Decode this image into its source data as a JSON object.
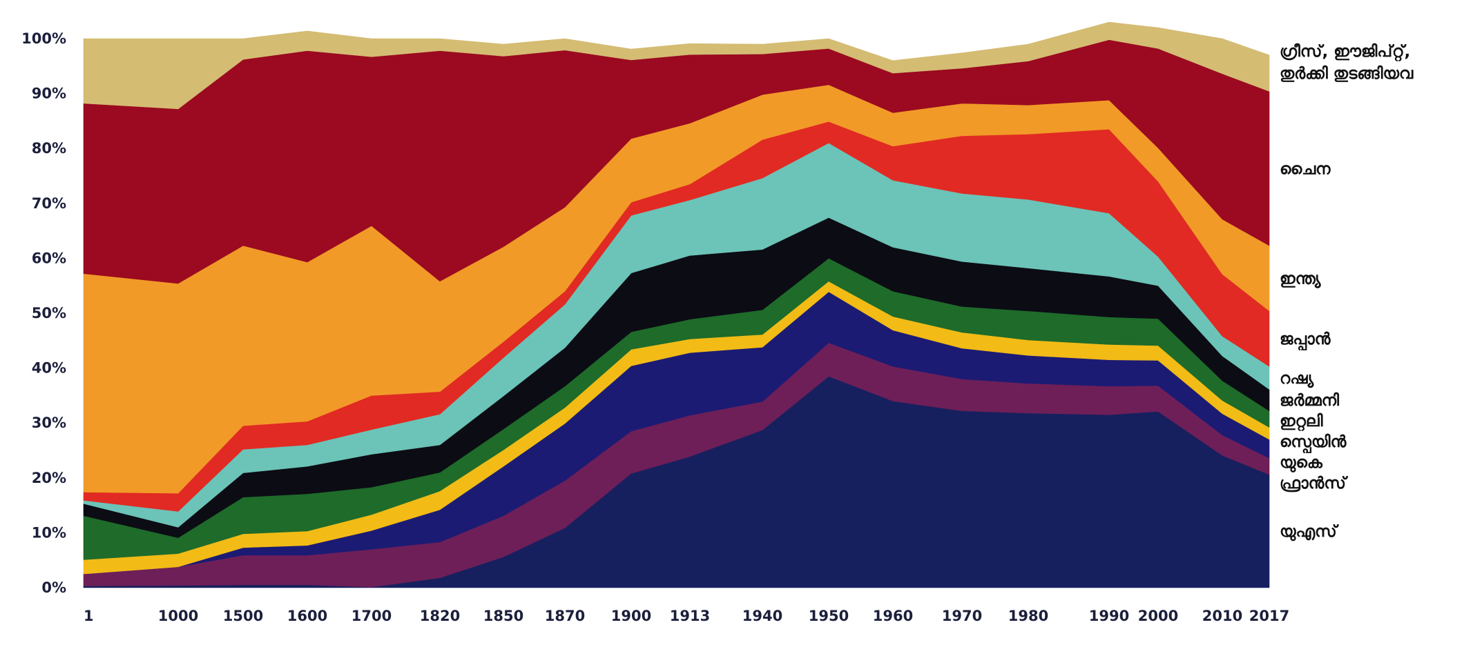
{
  "chart_data": {
    "type": "area",
    "stacked": true,
    "normalized_percent": true,
    "title": "",
    "xlabel": "",
    "ylabel": "",
    "ylim": [
      0,
      100
    ],
    "grid": false,
    "legend_placement": "right",
    "x": [
      "1",
      "1000",
      "1500",
      "1600",
      "1700",
      "1820",
      "1850",
      "1870",
      "1900",
      "1913",
      "1940",
      "1950",
      "1960",
      "1970",
      "1980",
      "1990",
      "2000",
      "2010",
      "2017"
    ],
    "y_ticks": [
      "0%",
      "10%",
      "20%",
      "30%",
      "40%",
      "50%",
      "60%",
      "70%",
      "80%",
      "90%",
      "100%"
    ],
    "series": [
      {
        "name": "യുഎസ്",
        "color": "#17205e",
        "values": [
          0.3,
          0.4,
          0.5,
          0.5,
          0.1,
          1.8,
          5.6,
          10.9,
          20.8,
          23.9,
          28.7,
          38.5,
          34.0,
          32.2,
          31.8,
          31.5,
          32.1,
          24.1,
          20.6
        ]
      },
      {
        "name": "ഫ്രാൻസ്",
        "color": "#6e1f58",
        "values": [
          2.2,
          3.4,
          5.4,
          5.4,
          6.9,
          6.5,
          7.5,
          8.6,
          7.7,
          7.5,
          5.2,
          6.1,
          6.3,
          5.8,
          5.4,
          5.2,
          4.7,
          3.7,
          3.0
        ]
      },
      {
        "name": "യുകെ",
        "color": "#1c1b74",
        "values": [
          0.0,
          0.0,
          1.4,
          1.8,
          3.4,
          5.9,
          9.0,
          10.4,
          11.9,
          11.4,
          9.9,
          9.3,
          6.6,
          5.6,
          5.1,
          4.8,
          4.6,
          3.9,
          3.4
        ]
      },
      {
        "name": "സ്പെയിൻ",
        "color": "#f2bb16",
        "values": [
          2.6,
          2.4,
          2.5,
          2.6,
          2.9,
          3.4,
          3.0,
          2.9,
          3.0,
          2.5,
          2.3,
          1.9,
          2.5,
          2.9,
          2.8,
          2.8,
          2.7,
          2.4,
          2.2
        ]
      },
      {
        "name": "ഇറ്റലി",
        "color": "#1e6b2a",
        "values": [
          8.0,
          2.9,
          6.7,
          6.8,
          5.0,
          3.4,
          3.8,
          3.9,
          3.2,
          3.6,
          4.5,
          4.2,
          4.6,
          4.7,
          5.3,
          5.0,
          4.9,
          3.6,
          3.0
        ]
      },
      {
        "name": "ജർമ്മനി",
        "color": "#0c0c14",
        "values": [
          2.2,
          1.9,
          4.4,
          5.0,
          6.0,
          5.0,
          6.0,
          7.0,
          10.7,
          11.6,
          11.0,
          7.4,
          8.0,
          8.2,
          7.8,
          7.4,
          6.0,
          4.5,
          3.9
        ]
      },
      {
        "name": "റഷ്യ",
        "color": "#6cc3b8",
        "values": [
          0.6,
          2.9,
          4.3,
          3.9,
          4.5,
          5.6,
          7.0,
          7.9,
          10.5,
          10.1,
          13.0,
          13.6,
          12.2,
          12.4,
          12.5,
          11.5,
          5.3,
          3.6,
          4.2
        ]
      },
      {
        "name": "ജപ്പാൻ",
        "color": "#e12a23",
        "values": [
          1.5,
          3.3,
          4.3,
          4.3,
          6.2,
          4.1,
          2.9,
          2.4,
          2.4,
          2.9,
          7.0,
          3.9,
          6.2,
          10.5,
          11.9,
          15.3,
          13.7,
          11.3,
          10.1
        ]
      },
      {
        "name": "ഇന്ത്യ",
        "color": "#f19a28",
        "values": [
          39.8,
          38.2,
          32.8,
          29.0,
          30.9,
          20.1,
          17.3,
          15.3,
          11.6,
          11.1,
          8.2,
          6.7,
          6.1,
          5.9,
          5.3,
          5.3,
          6.1,
          10.0,
          11.9
        ]
      },
      {
        "name": "ചൈന",
        "color": "#9b0a20",
        "values": [
          31.0,
          31.8,
          33.9,
          38.5,
          30.8,
          42.0,
          34.7,
          28.6,
          14.3,
          12.5,
          7.4,
          6.6,
          7.2,
          6.4,
          8.0,
          11.0,
          18.1,
          26.5,
          28.1
        ]
      },
      {
        "name": "ഗ്രീസ്, ഈജിപ്റ്റ്, തുർക്കി തുടങ്ങിയവ",
        "color": "#d4bc73",
        "values": [
          11.8,
          12.8,
          3.8,
          3.6,
          3.3,
          2.2,
          2.2,
          2.1,
          2.0,
          2.0,
          1.8,
          1.8,
          2.3,
          2.8,
          3.1,
          3.2,
          3.8,
          6.4,
          6.6
        ]
      }
    ],
    "legend_labels": [
      {
        "series": 10,
        "lines": [
          "ഗ്രീസ്, ഈജിപ്റ്റ്,",
          "തുർക്കി തുടങ്ങിയവ"
        ]
      },
      {
        "series": 9,
        "lines": [
          "ചൈന"
        ]
      },
      {
        "series": 8,
        "lines": [
          "ഇന്ത്യ"
        ]
      },
      {
        "series": 7,
        "lines": [
          "ജപ്പാൻ"
        ]
      },
      {
        "series": 6,
        "lines": [
          "റഷ്യ"
        ]
      },
      {
        "series": 5,
        "lines": [
          "ജർമ്മനി"
        ]
      },
      {
        "series": 4,
        "lines": [
          "ഇറ്റലി"
        ]
      },
      {
        "series": 3,
        "lines": [
          "സ്പെയിൻ"
        ]
      },
      {
        "series": 2,
        "lines": [
          "യുകെ"
        ]
      },
      {
        "series": 1,
        "lines": [
          "ഫ്രാൻസ്"
        ]
      },
      {
        "series": 0,
        "lines": [
          "യുഎസ്"
        ]
      }
    ]
  }
}
